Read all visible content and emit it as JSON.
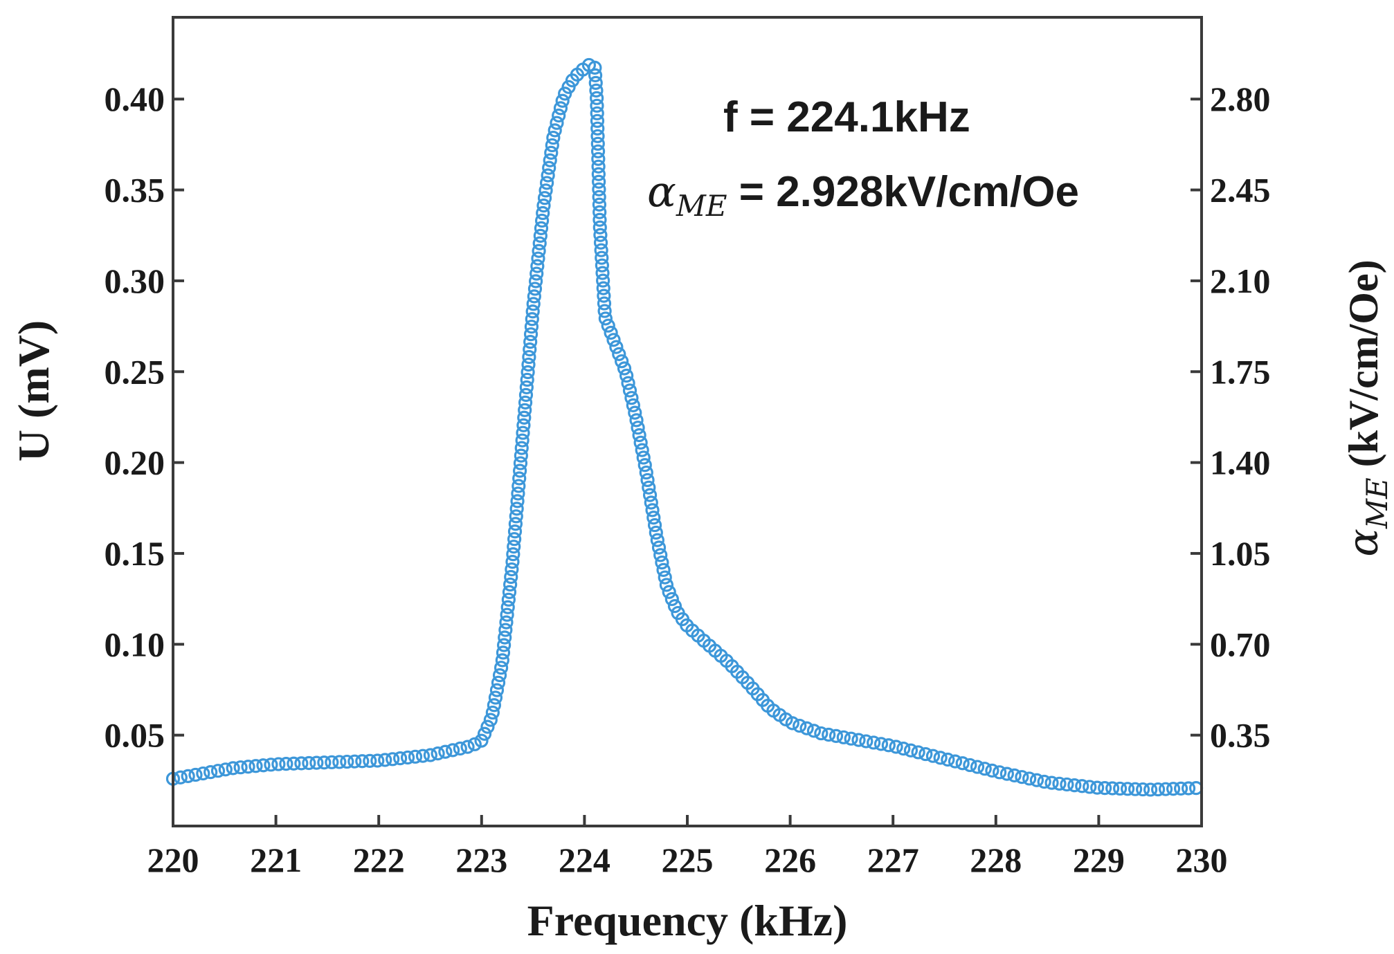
{
  "chart_data": {
    "type": "scatter",
    "title": "",
    "xlabel": "Frequency (kHz)",
    "ylabel": "U (mV)",
    "y2label_symbol": "α",
    "y2label_sub": "ME",
    "y2label_units": " (kV/cm/Oe)",
    "xlim": [
      220,
      230
    ],
    "ylim": [
      0,
      0.445
    ],
    "y2lim": [
      0,
      3.115
    ],
    "xticks": [
      220,
      221,
      222,
      223,
      224,
      225,
      226,
      227,
      228,
      229,
      230
    ],
    "yticks": [
      0.05,
      0.1,
      0.15,
      0.2,
      0.25,
      0.3,
      0.35,
      0.4
    ],
    "y2ticks": [
      0.35,
      0.7,
      1.05,
      1.4,
      1.75,
      2.1,
      2.45,
      2.8
    ],
    "ytick_labels": [
      "0.05",
      "0.10",
      "0.15",
      "0.20",
      "0.25",
      "0.30",
      "0.35",
      "0.40"
    ],
    "y2tick_labels": [
      "0.35",
      "0.70",
      "1.05",
      "1.40",
      "1.75",
      "2.10",
      "2.45",
      "2.80"
    ],
    "xtick_labels": [
      "220",
      "221",
      "222",
      "223",
      "224",
      "225",
      "226",
      "227",
      "228",
      "229",
      "230"
    ],
    "marker": "open-circle",
    "marker_color": "#3d97d9",
    "annotations": {
      "frequency": "f = 224.1kHz",
      "alpha_symbol": "α",
      "alpha_sub": "ME",
      "alpha_value": " = 2.928kV/cm/Oe"
    },
    "series": [
      {
        "name": "U",
        "x": [
          220.0,
          220.2,
          220.4,
          220.6,
          220.8,
          221.0,
          221.5,
          222.0,
          222.5,
          222.9,
          223.0,
          223.1,
          223.2,
          223.3,
          223.4,
          223.5,
          223.6,
          223.7,
          223.8,
          223.9,
          224.0,
          224.05,
          224.1,
          224.12,
          224.15,
          224.2,
          224.3,
          224.4,
          224.5,
          224.6,
          224.7,
          224.8,
          224.9,
          225.0,
          225.2,
          225.4,
          225.6,
          225.8,
          226.0,
          226.3,
          226.6,
          227.0,
          227.5,
          228.0,
          228.5,
          229.0,
          229.5,
          230.0
        ],
        "y": [
          0.026,
          0.028,
          0.03,
          0.032,
          0.033,
          0.034,
          0.035,
          0.036,
          0.039,
          0.044,
          0.047,
          0.06,
          0.09,
          0.145,
          0.215,
          0.285,
          0.34,
          0.38,
          0.402,
          0.412,
          0.417,
          0.419,
          0.418,
          0.4,
          0.33,
          0.28,
          0.265,
          0.25,
          0.225,
          0.195,
          0.16,
          0.132,
          0.118,
          0.11,
          0.1,
          0.09,
          0.078,
          0.065,
          0.057,
          0.051,
          0.048,
          0.044,
          0.037,
          0.03,
          0.024,
          0.021,
          0.02,
          0.021
        ]
      }
    ]
  }
}
